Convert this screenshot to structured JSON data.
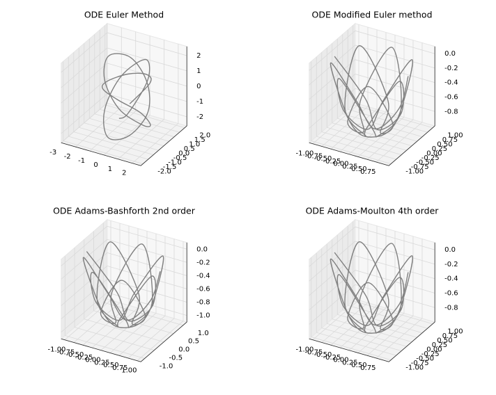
{
  "chart_data": [
    {
      "type": "line3d",
      "title": "ODE Euler Method",
      "series": [
        {
          "color": "#808080",
          "x": [
            0.2,
            1.2,
            1.5,
            0.8,
            -0.5,
            -1.4,
            -1.2,
            0.0,
            1.0,
            1.3,
            0.4,
            -0.9,
            -1.5,
            -0.6,
            0.7,
            1.4,
            0.9,
            -0.3,
            -1.2,
            -1.0,
            0.3,
            1.1,
            0.6,
            -0.4
          ],
          "y": [
            0.0,
            0.6,
            -0.2,
            -1.0,
            -1.2,
            -0.4,
            0.7,
            1.3,
            0.9,
            -0.3,
            -1.3,
            -0.9,
            0.3,
            1.2,
            1.0,
            0.1,
            -1.0,
            -1.4,
            -0.5,
            0.8,
            1.4,
            0.5,
            -0.7,
            -0.2
          ],
          "z": [
            -0.5,
            0.8,
            1.9,
            2.2,
            1.5,
            0.3,
            -1.0,
            -1.9,
            -2.2,
            -1.4,
            0.0,
            1.3,
            2.0,
            1.6,
            0.4,
            -0.8,
            -1.8,
            -2.0,
            -1.0,
            0.5,
            1.6,
            1.0,
            -0.6,
            -1.5
          ]
        }
      ],
      "xlim": [
        -3,
        2.6
      ],
      "ylim": [
        -2.2,
        2.2
      ],
      "zlim": [
        -2.6,
        2.6
      ],
      "xticks": [
        -3,
        -2,
        -1,
        0,
        1,
        2
      ],
      "yticks": [
        {
          "value": -2,
          "label": "-2.0"
        },
        -1.5,
        {
          "value": -1,
          "label": "-1.0"
        },
        -0.5,
        {
          "value": 0,
          "label": "0.0"
        },
        0.5,
        {
          "value": 1,
          "label": "1.0"
        },
        1.5,
        {
          "value": 2,
          "label": "2.0"
        }
      ],
      "zticks": [
        -2,
        -1,
        0,
        1,
        2
      ]
    },
    {
      "type": "line3d",
      "title": "ODE Modified Euler method",
      "series": [
        {
          "color": "#808080",
          "x": [
            1,
            0.44,
            -0.04,
            -0.62,
            -0.92,
            -0.2,
            0.11,
            0.7,
            0.7,
            -0.08,
            -0.17,
            -0.67,
            -0.36,
            0.35,
            0.2,
            0.53,
            -0.03,
            -0.56,
            -0.2,
            -0.31,
            0.42,
            0.68,
            0.16,
            0.04,
            -0.74,
            -0.69,
            -0.1,
            0.24,
            0.94,
            0.6,
            0.03,
            -0.47,
            -1.0
          ],
          "y": [
            0,
            0.54,
            0.2,
            0.33,
            -0.39,
            -0.67,
            -0.17,
            -0.06,
            0.72,
            0.7,
            0.11,
            -0.21,
            -0.93,
            -0.61,
            -0.03,
            0.46,
            1.0,
            0.43,
            -0.05,
            -0.63,
            -0.91,
            -0.18,
            0.12,
            0.7,
            0.68,
            -0.1,
            -0.17,
            -0.66,
            -0.33,
            0.36,
            0.2,
            0.51,
            -0.06
          ],
          "z": [
            -0.05,
            -0.71,
            -0.98,
            -0.71,
            -0.05,
            -0.71,
            -0.98,
            -0.71,
            -0.05,
            -0.71,
            -0.98,
            -0.71,
            -0.05,
            -0.71,
            -0.98,
            -0.71,
            -0.05,
            -0.71,
            -0.98,
            -0.71,
            -0.05,
            -0.71,
            -0.98,
            -0.71,
            -0.05,
            -0.71,
            -0.98,
            -0.71,
            -0.05,
            -0.71,
            -0.98,
            -0.71,
            -0.05
          ]
        }
      ],
      "xlim": [
        -1.1,
        1.1
      ],
      "ylim": [
        -1.1,
        1.1
      ],
      "zlim": [
        -1.0,
        0.1
      ],
      "xticks": [
        {
          "value": -1,
          "label": "-1.00"
        },
        -0.75,
        {
          "value": -0.5,
          "label": "-0.50"
        },
        -0.25,
        {
          "value": 0,
          "label": "0.00"
        },
        0.25,
        {
          "value": 0.5,
          "label": "0.50"
        },
        0.75
      ],
      "yticks": [
        {
          "value": -1,
          "label": "-1.00"
        },
        -0.75,
        {
          "value": -0.5,
          "label": "-0.50"
        },
        -0.25,
        {
          "value": 0,
          "label": "0.00"
        },
        0.25,
        {
          "value": 0.5,
          "label": "0.50"
        },
        0.75,
        {
          "value": 1,
          "label": "1.00"
        }
      ],
      "zticks": [
        -0.8,
        -0.6,
        -0.4,
        -0.2,
        {
          "value": 0,
          "label": "0.0"
        }
      ]
    },
    {
      "type": "line3d",
      "title": "ODE Adams-Bashforth 2nd order",
      "series": [
        {
          "color": "#808080",
          "x": [
            1,
            0.44,
            -0.04,
            -0.62,
            -0.92,
            -0.2,
            0.11,
            0.7,
            0.7,
            -0.08,
            -0.17,
            -0.67,
            -0.36,
            0.35,
            0.2,
            0.53,
            -0.03,
            -0.56,
            -0.2,
            -0.31,
            0.42,
            0.68,
            0.16,
            0.04,
            -0.74,
            -0.69,
            -0.1,
            0.24,
            0.94,
            0.6,
            0.03,
            -0.47,
            -1.0
          ],
          "y": [
            0,
            0.54,
            0.2,
            0.33,
            -0.39,
            -0.67,
            -0.17,
            -0.06,
            0.72,
            0.7,
            0.11,
            -0.21,
            -0.93,
            -0.61,
            -0.03,
            0.46,
            1.0,
            0.43,
            -0.05,
            -0.63,
            -0.91,
            -0.18,
            0.12,
            0.7,
            0.68,
            -0.1,
            -0.17,
            -0.66,
            -0.33,
            0.36,
            0.2,
            0.51,
            -0.06
          ],
          "z": [
            -0.05,
            -0.72,
            -1.0,
            -0.72,
            -0.05,
            -0.72,
            -1.0,
            -0.72,
            -0.05,
            -0.72,
            -1.0,
            -0.72,
            -0.05,
            -0.72,
            -1.0,
            -0.72,
            -0.05,
            -0.72,
            -1.0,
            -0.72,
            -0.05,
            -0.72,
            -1.0,
            -0.72,
            -0.05,
            -0.72,
            -1.0,
            -0.72,
            -0.05,
            -0.72,
            -1.0,
            -0.72,
            -0.05
          ]
        }
      ],
      "xlim": [
        -1.1,
        1.1
      ],
      "ylim": [
        -1.2,
        1.2
      ],
      "zlim": [
        -1.1,
        0.1
      ],
      "xticks": [
        {
          "value": -1,
          "label": "-1.00"
        },
        -0.75,
        {
          "value": -0.5,
          "label": "-0.50"
        },
        -0.25,
        {
          "value": 0,
          "label": "0.00"
        },
        0.25,
        {
          "value": 0.5,
          "label": "0.50"
        },
        0.75,
        {
          "value": 1,
          "label": "1.00"
        }
      ],
      "yticks": [
        {
          "value": -1,
          "label": "-1.0"
        },
        -0.5,
        {
          "value": 0,
          "label": "0.0"
        },
        0.5,
        {
          "value": 1,
          "label": "1.0"
        }
      ],
      "zticks": [
        {
          "value": -1,
          "label": "-1.0"
        },
        -0.8,
        -0.6,
        -0.4,
        -0.2,
        {
          "value": 0,
          "label": "0.0"
        }
      ]
    },
    {
      "type": "line3d",
      "title": "ODE Adams-Moulton 4th order",
      "series": [
        {
          "color": "#808080",
          "x": [
            1,
            0.44,
            -0.04,
            -0.62,
            -0.92,
            -0.2,
            0.11,
            0.7,
            0.7,
            -0.08,
            -0.17,
            -0.67,
            -0.36,
            0.35,
            0.2,
            0.53,
            -0.03,
            -0.56,
            -0.2,
            -0.31,
            0.42,
            0.68,
            0.16,
            0.04,
            -0.74,
            -0.69,
            -0.1,
            0.24,
            0.94,
            0.6,
            0.03,
            -0.47,
            -1.0
          ],
          "y": [
            0,
            0.54,
            0.2,
            0.33,
            -0.39,
            -0.67,
            -0.17,
            -0.06,
            0.72,
            0.7,
            0.11,
            -0.21,
            -0.93,
            -0.61,
            -0.03,
            0.46,
            1.0,
            0.43,
            -0.05,
            -0.63,
            -0.91,
            -0.18,
            0.12,
            0.7,
            0.68,
            -0.1,
            -0.17,
            -0.66,
            -0.33,
            0.36,
            0.2,
            0.51,
            -0.06
          ],
          "z": [
            -0.05,
            -0.71,
            -0.98,
            -0.71,
            -0.05,
            -0.71,
            -0.98,
            -0.71,
            -0.05,
            -0.71,
            -0.98,
            -0.71,
            -0.05,
            -0.71,
            -0.98,
            -0.71,
            -0.05,
            -0.71,
            -0.98,
            -0.71,
            -0.05,
            -0.71,
            -0.98,
            -0.71,
            -0.05,
            -0.71,
            -0.98,
            -0.71,
            -0.05,
            -0.71,
            -0.98,
            -0.71,
            -0.05
          ]
        }
      ],
      "xlim": [
        -1.1,
        1.1
      ],
      "ylim": [
        -1.1,
        1.1
      ],
      "zlim": [
        -1.0,
        0.1
      ],
      "xticks": [
        {
          "value": -1,
          "label": "-1.00"
        },
        -0.75,
        {
          "value": -0.5,
          "label": "-0.50"
        },
        -0.25,
        {
          "value": 0,
          "label": "0.00"
        },
        0.25,
        {
          "value": 0.5,
          "label": "0.50"
        },
        0.75
      ],
      "yticks": [
        {
          "value": -1,
          "label": "-1.00"
        },
        -0.75,
        {
          "value": -0.5,
          "label": "-0.50"
        },
        -0.25,
        {
          "value": 0,
          "label": "0.00"
        },
        0.25,
        {
          "value": 0.5,
          "label": "0.50"
        },
        0.75,
        {
          "value": 1,
          "label": "1.00"
        }
      ],
      "zticks": [
        -0.8,
        -0.6,
        -0.4,
        -0.2,
        {
          "value": 0,
          "label": "0.0"
        }
      ]
    }
  ]
}
